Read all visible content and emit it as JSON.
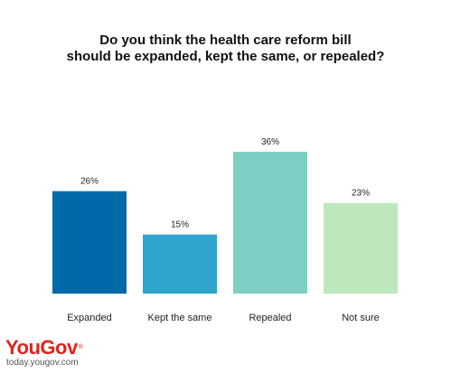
{
  "title_lines": [
    "Do you think the health care reform bill",
    "should be expanded, kept the same, or repealed?"
  ],
  "chart_data": {
    "type": "bar",
    "title": "Do you think the health care reform bill should be expanded, kept the same, or repealed?",
    "categories": [
      "Expanded",
      "Kept the same",
      "Repealed",
      "Not sure"
    ],
    "values": [
      26,
      15,
      36,
      23
    ],
    "data_labels": [
      "26%",
      "15%",
      "36%",
      "23%"
    ],
    "colors": [
      "#0069aa",
      "#2fa4cc",
      "#7dcfc3",
      "#bde7bd"
    ],
    "unit": "%",
    "ylim": [
      0,
      36
    ],
    "grid": false,
    "legend": "none"
  },
  "brand": {
    "logo": "YouGov",
    "logo_mark": "®",
    "site": "today.yougov.com"
  }
}
